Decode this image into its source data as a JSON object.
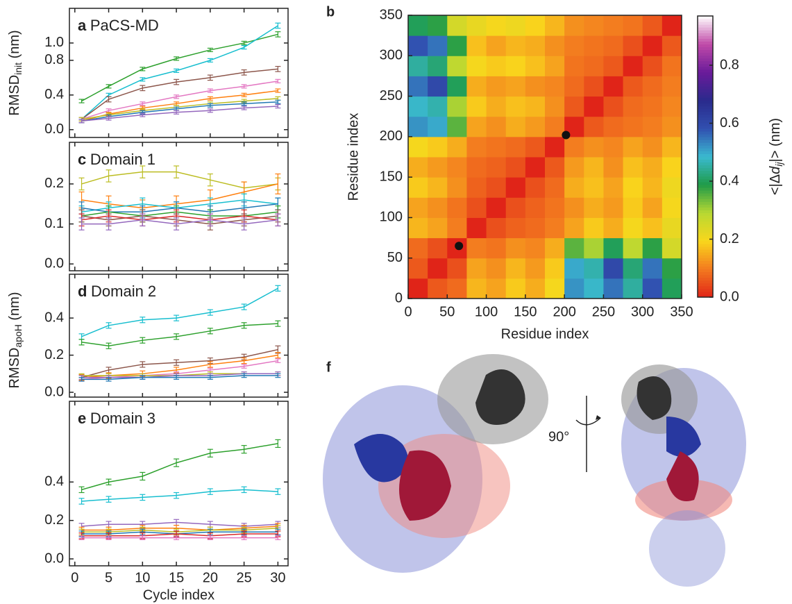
{
  "chart_data": [
    {
      "type": "line",
      "panel": "a",
      "title": "PaCS-MD",
      "ylabel": "RMSD",
      "ylabel_sub": "init",
      "ylabel_unit": " (nm)",
      "x": [
        1,
        5,
        10,
        15,
        20,
        25,
        30
      ],
      "xlim": [
        -0.8,
        31.5
      ],
      "xticks": [
        0,
        5,
        10,
        15,
        20,
        25,
        30
      ],
      "xticklabels": false,
      "ylim": [
        -0.09,
        1.4
      ],
      "yticks": [
        {
          "value": 0,
          "label": "0.0"
        },
        {
          "value": 0.4,
          "label": "0.4"
        },
        {
          "value": 0.8,
          "label": "0.8"
        },
        {
          "value": 1,
          "label": "1.0"
        }
      ],
      "series": [
        {
          "color": "#2ca02c",
          "values": [
            0.33,
            0.5,
            0.7,
            0.82,
            0.92,
            1.0,
            1.1
          ],
          "errors": [
            0.02,
            0.02,
            0.02,
            0.02,
            0.02,
            0.02,
            0.03
          ]
        },
        {
          "color": "#17becf",
          "values": [
            0.12,
            0.4,
            0.58,
            0.68,
            0.8,
            0.95,
            1.2
          ],
          "errors": [
            0.02,
            0.02,
            0.02,
            0.02,
            0.02,
            0.02,
            0.03
          ]
        },
        {
          "color": "#8c564b",
          "values": [
            0.12,
            0.35,
            0.48,
            0.55,
            0.6,
            0.66,
            0.7
          ],
          "errors": [
            0.02,
            0.03,
            0.03,
            0.03,
            0.03,
            0.03,
            0.03
          ]
        },
        {
          "color": "#e377c2",
          "values": [
            0.12,
            0.22,
            0.3,
            0.38,
            0.45,
            0.5,
            0.56
          ],
          "errors": [
            0.02,
            0.02,
            0.02,
            0.02,
            0.02,
            0.02,
            0.02
          ]
        },
        {
          "color": "#ff7f0e",
          "values": [
            0.1,
            0.18,
            0.25,
            0.3,
            0.36,
            0.4,
            0.45
          ],
          "errors": [
            0.02,
            0.02,
            0.02,
            0.02,
            0.02,
            0.02,
            0.02
          ]
        },
        {
          "color": "#bcbd22",
          "values": [
            0.12,
            0.17,
            0.22,
            0.26,
            0.3,
            0.33,
            0.36
          ],
          "errors": [
            0.02,
            0.02,
            0.02,
            0.02,
            0.02,
            0.02,
            0.02
          ]
        },
        {
          "color": "#1f77b4",
          "values": [
            0.1,
            0.15,
            0.2,
            0.24,
            0.28,
            0.3,
            0.32
          ],
          "errors": [
            0.02,
            0.02,
            0.02,
            0.02,
            0.02,
            0.02,
            0.02
          ]
        },
        {
          "color": "#9467bd",
          "values": [
            0.1,
            0.13,
            0.17,
            0.2,
            0.22,
            0.25,
            0.27
          ],
          "errors": [
            0.02,
            0.02,
            0.02,
            0.02,
            0.02,
            0.02,
            0.02
          ]
        }
      ]
    },
    {
      "type": "line",
      "panel": "c",
      "title": "Domain 1",
      "x": [
        1,
        5,
        10,
        15,
        20,
        25,
        30
      ],
      "xlim": [
        -0.8,
        31.5
      ],
      "xticks": [
        0,
        5,
        10,
        15,
        20,
        25,
        30
      ],
      "xticklabels": false,
      "ylim": [
        -0.017,
        0.304
      ],
      "yticks": [
        {
          "value": 0,
          "label": "0.0"
        },
        0.1,
        0.2
      ],
      "series": [
        {
          "color": "#bcbd22",
          "values": [
            0.2,
            0.22,
            0.23,
            0.23,
            0.21,
            0.19,
            0.2
          ],
          "errors": [
            0.015,
            0.015,
            0.015,
            0.015,
            0.015,
            0.015,
            0.015
          ]
        },
        {
          "color": "#ff7f0e",
          "values": [
            0.16,
            0.15,
            0.14,
            0.15,
            0.16,
            0.18,
            0.2
          ],
          "errors": [
            0.02,
            0.02,
            0.02,
            0.02,
            0.025,
            0.025,
            0.025
          ]
        },
        {
          "color": "#17becf",
          "values": [
            0.13,
            0.14,
            0.15,
            0.14,
            0.15,
            0.16,
            0.15
          ],
          "errors": [
            0.015,
            0.015,
            0.015,
            0.015,
            0.015,
            0.015,
            0.015
          ]
        },
        {
          "color": "#1f77b4",
          "values": [
            0.14,
            0.13,
            0.13,
            0.14,
            0.13,
            0.14,
            0.15
          ],
          "errors": [
            0.015,
            0.015,
            0.015,
            0.015,
            0.015,
            0.015,
            0.015
          ]
        },
        {
          "color": "#2ca02c",
          "values": [
            0.12,
            0.13,
            0.12,
            0.13,
            0.12,
            0.12,
            0.13
          ],
          "errors": [
            0.015,
            0.015,
            0.015,
            0.015,
            0.015,
            0.015,
            0.015
          ]
        },
        {
          "color": "#8c564b",
          "values": [
            0.12,
            0.11,
            0.12,
            0.11,
            0.1,
            0.11,
            0.12
          ],
          "errors": [
            0.015,
            0.015,
            0.015,
            0.015,
            0.015,
            0.015,
            0.015
          ]
        },
        {
          "color": "#d62728",
          "values": [
            0.11,
            0.12,
            0.11,
            0.12,
            0.11,
            0.12,
            0.11
          ],
          "errors": [
            0.015,
            0.015,
            0.015,
            0.015,
            0.015,
            0.015,
            0.015
          ]
        },
        {
          "color": "#9467bd",
          "values": [
            0.1,
            0.1,
            0.11,
            0.1,
            0.11,
            0.1,
            0.11
          ],
          "errors": [
            0.015,
            0.015,
            0.015,
            0.015,
            0.015,
            0.015,
            0.015
          ]
        }
      ]
    },
    {
      "type": "line",
      "panel": "d",
      "title": "Domain 2",
      "ylabel": "RMSD",
      "ylabel_sub": "apoH",
      "ylabel_unit": " (nm)",
      "x": [
        1,
        5,
        10,
        15,
        20,
        25,
        30
      ],
      "xlim": [
        -0.8,
        31.5
      ],
      "xticks": [
        0,
        5,
        10,
        15,
        20,
        25,
        30
      ],
      "xticklabels": false,
      "ylim": [
        -0.026,
        0.636
      ],
      "yticks": [
        {
          "value": 0,
          "label": "0.0"
        },
        {
          "value": 0.2,
          "label": "0.2"
        },
        {
          "value": 0.4,
          "label": "0.4"
        }
      ],
      "series": [
        {
          "color": "#17becf",
          "values": [
            0.3,
            0.36,
            0.39,
            0.4,
            0.43,
            0.46,
            0.56
          ],
          "errors": [
            0.015,
            0.015,
            0.015,
            0.015,
            0.015,
            0.015,
            0.015
          ]
        },
        {
          "color": "#2ca02c",
          "values": [
            0.27,
            0.25,
            0.28,
            0.3,
            0.33,
            0.36,
            0.37
          ],
          "errors": [
            0.015,
            0.015,
            0.015,
            0.015,
            0.015,
            0.015,
            0.015
          ]
        },
        {
          "color": "#8c564b",
          "values": [
            0.08,
            0.12,
            0.15,
            0.16,
            0.17,
            0.19,
            0.23
          ],
          "errors": [
            0.015,
            0.015,
            0.015,
            0.015,
            0.015,
            0.015,
            0.02
          ]
        },
        {
          "color": "#ff7f0e",
          "values": [
            0.08,
            0.09,
            0.1,
            0.12,
            0.15,
            0.17,
            0.2
          ],
          "errors": [
            0.015,
            0.015,
            0.015,
            0.015,
            0.015,
            0.015,
            0.015
          ]
        },
        {
          "color": "#e377c2",
          "values": [
            0.07,
            0.08,
            0.09,
            0.1,
            0.12,
            0.14,
            0.17
          ],
          "errors": [
            0.01,
            0.01,
            0.01,
            0.01,
            0.01,
            0.01,
            0.01
          ]
        },
        {
          "color": "#bcbd22",
          "values": [
            0.09,
            0.09,
            0.09,
            0.09,
            0.1,
            0.1,
            0.1
          ],
          "errors": [
            0.01,
            0.01,
            0.01,
            0.01,
            0.01,
            0.01,
            0.01
          ]
        },
        {
          "color": "#9467bd",
          "values": [
            0.08,
            0.08,
            0.08,
            0.09,
            0.09,
            0.1,
            0.1
          ],
          "errors": [
            0.01,
            0.01,
            0.01,
            0.01,
            0.01,
            0.01,
            0.01
          ]
        },
        {
          "color": "#1f77b4",
          "values": [
            0.07,
            0.07,
            0.08,
            0.08,
            0.08,
            0.09,
            0.09
          ],
          "errors": [
            0.01,
            0.01,
            0.01,
            0.01,
            0.01,
            0.01,
            0.01
          ]
        }
      ]
    },
    {
      "type": "line",
      "panel": "e",
      "title": "Domain 3",
      "xlabel": "Cycle index",
      "x": [
        1,
        5,
        10,
        15,
        20,
        25,
        30
      ],
      "xlim": [
        -0.8,
        31.5
      ],
      "xticks": [
        0,
        5,
        10,
        15,
        20,
        25,
        30
      ],
      "xticklabels": true,
      "ylim": [
        -0.036,
        0.82
      ],
      "yticks": [
        {
          "value": 0,
          "label": "0.0"
        },
        {
          "value": 0.2,
          "label": "0.2"
        },
        {
          "value": 0.4,
          "label": "0.4"
        }
      ],
      "series": [
        {
          "color": "#2ca02c",
          "values": [
            0.36,
            0.4,
            0.43,
            0.5,
            0.55,
            0.57,
            0.6
          ],
          "errors": [
            0.015,
            0.015,
            0.02,
            0.02,
            0.02,
            0.02,
            0.02
          ]
        },
        {
          "color": "#17becf",
          "values": [
            0.3,
            0.31,
            0.32,
            0.33,
            0.35,
            0.36,
            0.35
          ],
          "errors": [
            0.015,
            0.015,
            0.015,
            0.015,
            0.015,
            0.015,
            0.015
          ]
        },
        {
          "color": "#9467bd",
          "values": [
            0.17,
            0.18,
            0.18,
            0.19,
            0.18,
            0.17,
            0.18
          ],
          "errors": [
            0.015,
            0.015,
            0.015,
            0.015,
            0.015,
            0.015,
            0.015
          ]
        },
        {
          "color": "#ff7f0e",
          "values": [
            0.15,
            0.15,
            0.16,
            0.16,
            0.15,
            0.16,
            0.17
          ],
          "errors": [
            0.015,
            0.015,
            0.015,
            0.015,
            0.015,
            0.015,
            0.015
          ]
        },
        {
          "color": "#bcbd22",
          "values": [
            0.14,
            0.14,
            0.15,
            0.14,
            0.15,
            0.15,
            0.16
          ],
          "errors": [
            0.015,
            0.015,
            0.015,
            0.015,
            0.015,
            0.015,
            0.015
          ]
        },
        {
          "color": "#1f77b4",
          "values": [
            0.13,
            0.13,
            0.14,
            0.13,
            0.14,
            0.14,
            0.14
          ],
          "errors": [
            0.015,
            0.015,
            0.015,
            0.015,
            0.015,
            0.015,
            0.015
          ]
        },
        {
          "color": "#d62728",
          "values": [
            0.12,
            0.12,
            0.12,
            0.13,
            0.12,
            0.13,
            0.13
          ],
          "errors": [
            0.015,
            0.015,
            0.015,
            0.015,
            0.015,
            0.015,
            0.015
          ]
        },
        {
          "color": "#e377c2",
          "values": [
            0.11,
            0.11,
            0.11,
            0.11,
            0.11,
            0.11,
            0.11
          ],
          "errors": [
            0.01,
            0.01,
            0.01,
            0.01,
            0.01,
            0.01,
            0.01
          ]
        }
      ]
    },
    {
      "type": "heatmap",
      "panel": "b",
      "xlabel": "Residue index",
      "ylabel": "Residue index",
      "xlim": [
        0,
        350
      ],
      "ylim": [
        0,
        350
      ],
      "xticks": [
        0,
        50,
        100,
        150,
        200,
        250,
        300,
        350
      ],
      "yticks": [
        0,
        50,
        100,
        150,
        200,
        250,
        300,
        350
      ],
      "bins": [
        0,
        25,
        50,
        75,
        100,
        125,
        150,
        175,
        200,
        225,
        250,
        275,
        300,
        325,
        350
      ],
      "z": [
        [
          0.0,
          0.06,
          0.08,
          0.16,
          0.14,
          0.18,
          0.15,
          0.2,
          0.52,
          0.48,
          0.55,
          0.45,
          0.58,
          0.4
        ],
        [
          0.06,
          0.0,
          0.05,
          0.14,
          0.12,
          0.16,
          0.13,
          0.18,
          0.5,
          0.46,
          0.6,
          0.42,
          0.55,
          0.38
        ],
        [
          0.08,
          0.05,
          0.0,
          0.1,
          0.09,
          0.12,
          0.11,
          0.15,
          0.35,
          0.3,
          0.4,
          0.28,
          0.38,
          0.25
        ],
        [
          0.16,
          0.14,
          0.1,
          0.0,
          0.05,
          0.07,
          0.08,
          0.1,
          0.14,
          0.18,
          0.15,
          0.2,
          0.17,
          0.22
        ],
        [
          0.14,
          0.12,
          0.09,
          0.05,
          0.0,
          0.05,
          0.07,
          0.09,
          0.12,
          0.15,
          0.13,
          0.18,
          0.14,
          0.2
        ],
        [
          0.18,
          0.16,
          0.12,
          0.07,
          0.05,
          0.0,
          0.05,
          0.08,
          0.15,
          0.17,
          0.14,
          0.19,
          0.16,
          0.21
        ],
        [
          0.15,
          0.13,
          0.11,
          0.08,
          0.07,
          0.05,
          0.0,
          0.06,
          0.13,
          0.16,
          0.12,
          0.17,
          0.15,
          0.19
        ],
        [
          0.2,
          0.18,
          0.15,
          0.1,
          0.09,
          0.08,
          0.06,
          0.0,
          0.1,
          0.12,
          0.11,
          0.14,
          0.12,
          0.16
        ],
        [
          0.52,
          0.5,
          0.35,
          0.14,
          0.12,
          0.15,
          0.13,
          0.1,
          0.0,
          0.06,
          0.08,
          0.09,
          0.1,
          0.12
        ],
        [
          0.48,
          0.46,
          0.3,
          0.18,
          0.15,
          0.17,
          0.16,
          0.12,
          0.06,
          0.0,
          0.05,
          0.08,
          0.09,
          0.11
        ],
        [
          0.55,
          0.6,
          0.4,
          0.15,
          0.13,
          0.14,
          0.12,
          0.11,
          0.08,
          0.05,
          0.0,
          0.06,
          0.08,
          0.1
        ],
        [
          0.45,
          0.42,
          0.28,
          0.2,
          0.18,
          0.19,
          0.17,
          0.14,
          0.09,
          0.08,
          0.06,
          0.0,
          0.05,
          0.09
        ],
        [
          0.58,
          0.55,
          0.38,
          0.17,
          0.14,
          0.16,
          0.15,
          0.12,
          0.1,
          0.09,
          0.08,
          0.05,
          0.0,
          0.06
        ],
        [
          0.4,
          0.38,
          0.25,
          0.22,
          0.2,
          0.21,
          0.19,
          0.16,
          0.12,
          0.11,
          0.1,
          0.09,
          0.06,
          0.0
        ]
      ],
      "points": {
        "x": [
          65,
          202
        ],
        "y": [
          65,
          202
        ]
      },
      "colorscale": [
        "#e02418",
        "#f37a1f",
        "#f9d71c",
        "#b8d832",
        "#1f9b48",
        "#3ab9d0",
        "#3150b0",
        "#2a2a8c",
        "#6a1b9a",
        "#c04aa8",
        "#ffffff"
      ],
      "colorbar": {
        "clim": [
          0,
          0.97
        ],
        "ticks": [
          {
            "value": 0,
            "label": "0.0"
          },
          {
            "value": 0.2,
            "label": "0.2"
          },
          {
            "value": 0.4,
            "label": "0.4"
          },
          {
            "value": 0.6,
            "label": "0.6"
          },
          {
            "value": 0.8,
            "label": "0.8"
          }
        ],
        "label": "<|Δ",
        "label_italic": "d",
        "label_sub": "ij",
        "label_end": "|> (nm)"
      }
    }
  ],
  "figure_f": {
    "label": "f",
    "angle": "90°"
  }
}
